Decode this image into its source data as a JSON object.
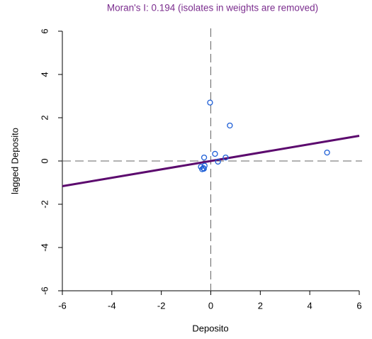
{
  "chart_data": {
    "type": "scatter",
    "title": "Moran's I: 0.194 (isolates in weights are removed)",
    "x_label": "Deposito",
    "y_label": "lagged Deposito",
    "x": [
      -0.03,
      0.77,
      4.7,
      0.17,
      -0.27,
      0.6,
      0.29,
      -0.4,
      -0.3,
      -0.25,
      -0.35,
      -0.28
    ],
    "y": [
      2.7,
      1.64,
      0.39,
      0.33,
      0.16,
      0.16,
      -0.03,
      -0.27,
      -0.33,
      -0.22,
      -0.38,
      -0.36
    ],
    "color": "#1f5fd6",
    "regression_line": {
      "slope": 0.194,
      "intercept": 0,
      "color": "#5c0a6e"
    },
    "reference_lines": {
      "x": 0,
      "y": 0
    },
    "xlim": [
      -6,
      6
    ],
    "ylim": [
      -6,
      6
    ],
    "xticks": [
      -6,
      -4,
      -2,
      0,
      2,
      4,
      6
    ],
    "yticks": [
      -6,
      -4,
      -2,
      0,
      2,
      4,
      6
    ]
  }
}
